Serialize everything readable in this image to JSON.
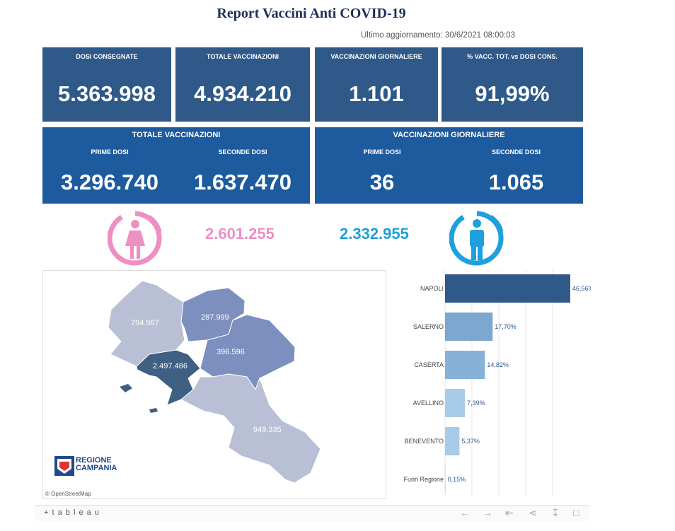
{
  "title": "Report Vaccini Anti COVID-19",
  "updated": "Ultimo aggiornamento: 30/6/2021 08:00:03",
  "kpis": [
    {
      "label": "DOSI  CONSEGNATE",
      "value": "5.363.998"
    },
    {
      "label": "TOTALE VACCINAZIONI",
      "value": "4.934.210"
    },
    {
      "label": "VACCINAZIONI GIORNALIERE",
      "value": "1.101"
    },
    {
      "label": "% VACC. TOT. vs DOSI CONS.",
      "value": "91,99%"
    }
  ],
  "totale": {
    "title": "TOTALE VACCINAZIONI",
    "prime_label": "PRIME DOSI",
    "prime_value": "3.296.740",
    "seconde_label": "SECONDE DOSI",
    "seconde_value": "1.637.470"
  },
  "giornaliere": {
    "title": "VACCINAZIONI GIORNALIERE",
    "prime_label": "PRIME DOSI",
    "prime_value": "36",
    "seconde_label": "SECONDE DOSI",
    "seconde_value": "1.065"
  },
  "female_value": "2.601.255",
  "male_value": "2.332.955",
  "colors": {
    "female": "#ee8fc3",
    "male": "#1ea0dc",
    "card": "#2e5989",
    "card_blue": "#1d5a9e"
  },
  "map": {
    "provinces": [
      {
        "name": "Caserta",
        "label": "794.967",
        "color": "#b9bfd4"
      },
      {
        "name": "Benevento",
        "label": "287.999",
        "color": "#7d8fbf"
      },
      {
        "name": "Avellino",
        "label": "396.596",
        "color": "#7d8fbf"
      },
      {
        "name": "Napoli",
        "label": "2.497.486",
        "color": "#3f5f83"
      },
      {
        "name": "Salerno",
        "label": "949.335",
        "color": "#b9bfd4"
      }
    ],
    "logo_line1": "REGIONE",
    "logo_line2": "CAMPANIA",
    "credit": "© OpenStreetMap"
  },
  "chart_data": {
    "type": "bar",
    "orientation": "horizontal",
    "categories": [
      "NAPOLI",
      "SALERNO",
      "CASERTA",
      "AVELLINO",
      "BENEVENTO",
      "Fuori Regione"
    ],
    "values": [
      46.56,
      17.7,
      14.82,
      7.39,
      5.37,
      0.15
    ],
    "value_labels": [
      "46,56%",
      "17,70%",
      "14,82%",
      "7,39%",
      "5,37%",
      "0,15%"
    ],
    "colors": [
      "#2e5989",
      "#7ba7d0",
      "#86b2da",
      "#a8cce8",
      "#a8cce8",
      "#a8cce8"
    ],
    "xlim": [
      0,
      50
    ]
  },
  "footer": {
    "brand": "+ t a b l e a u"
  }
}
